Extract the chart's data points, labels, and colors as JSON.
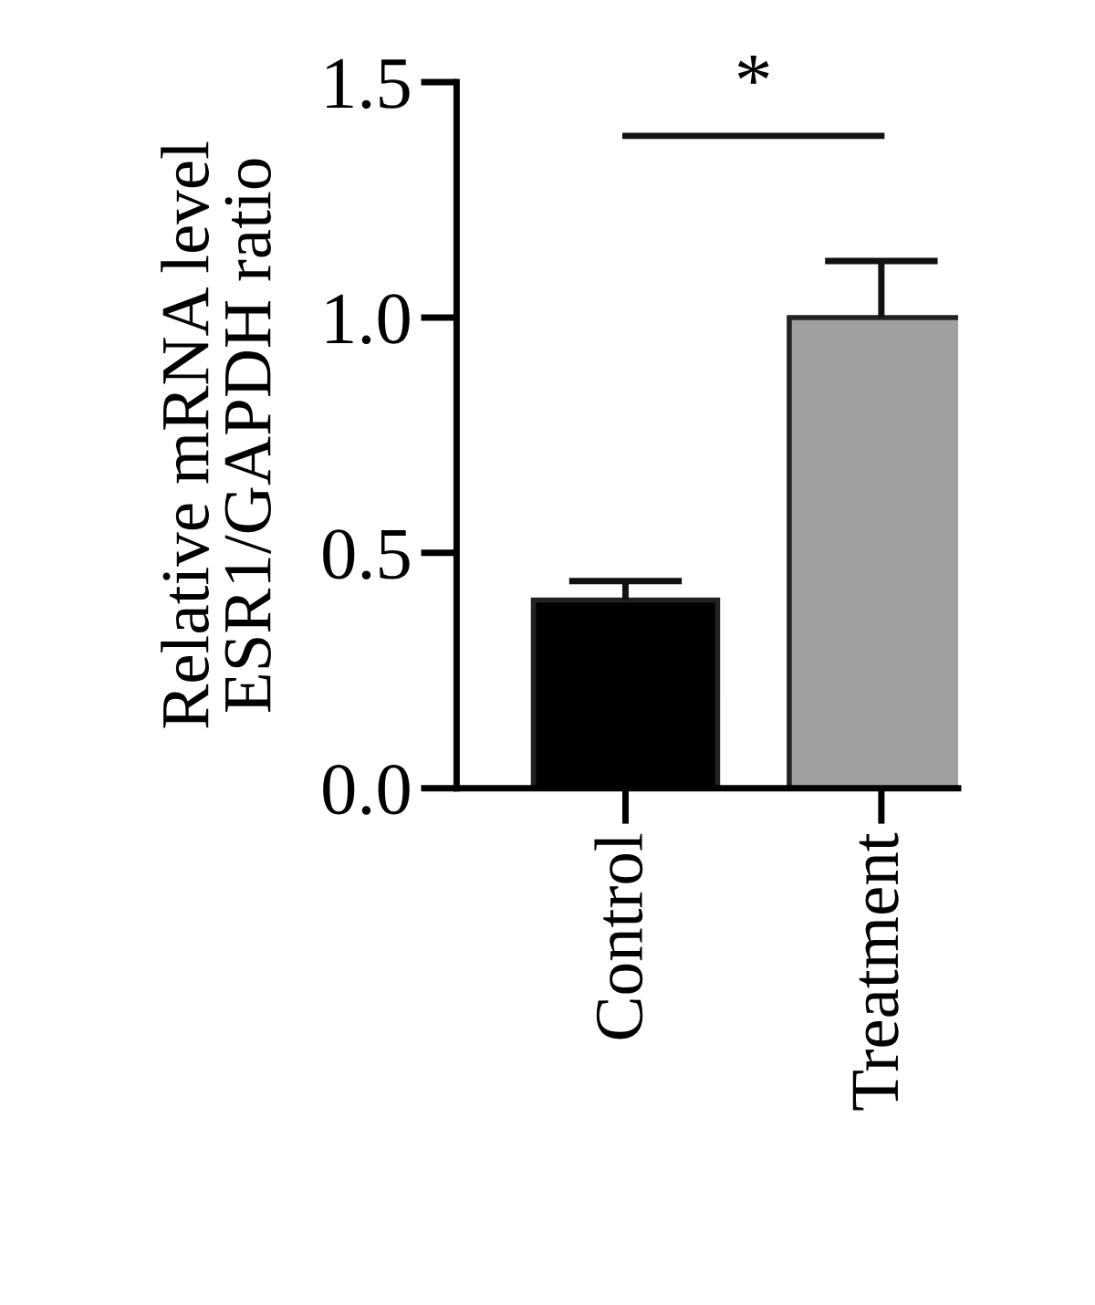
{
  "chart_data": {
    "type": "bar",
    "ylabel": "Relative mRNA level\nESR1/GAPDH ratio",
    "categories": [
      "Control",
      "Treatment"
    ],
    "values": [
      0.4,
      1.0
    ],
    "colors": [
      "#000000",
      "#a0a0a0"
    ],
    "errors": [
      [
        0.4,
        0.44
      ],
      [
        1.0,
        1.12
      ]
    ],
    "ylim": [
      0,
      1.5
    ],
    "yticks": [
      {
        "value": 0,
        "label": "0.0"
      },
      {
        "value": 0.5,
        "label": "0.5"
      },
      {
        "value": 1.0,
        "label": "1.0"
      },
      {
        "value": 1.5,
        "label": "1.5"
      }
    ],
    "grid": false,
    "legend": false,
    "annotations": [
      "*"
    ]
  }
}
